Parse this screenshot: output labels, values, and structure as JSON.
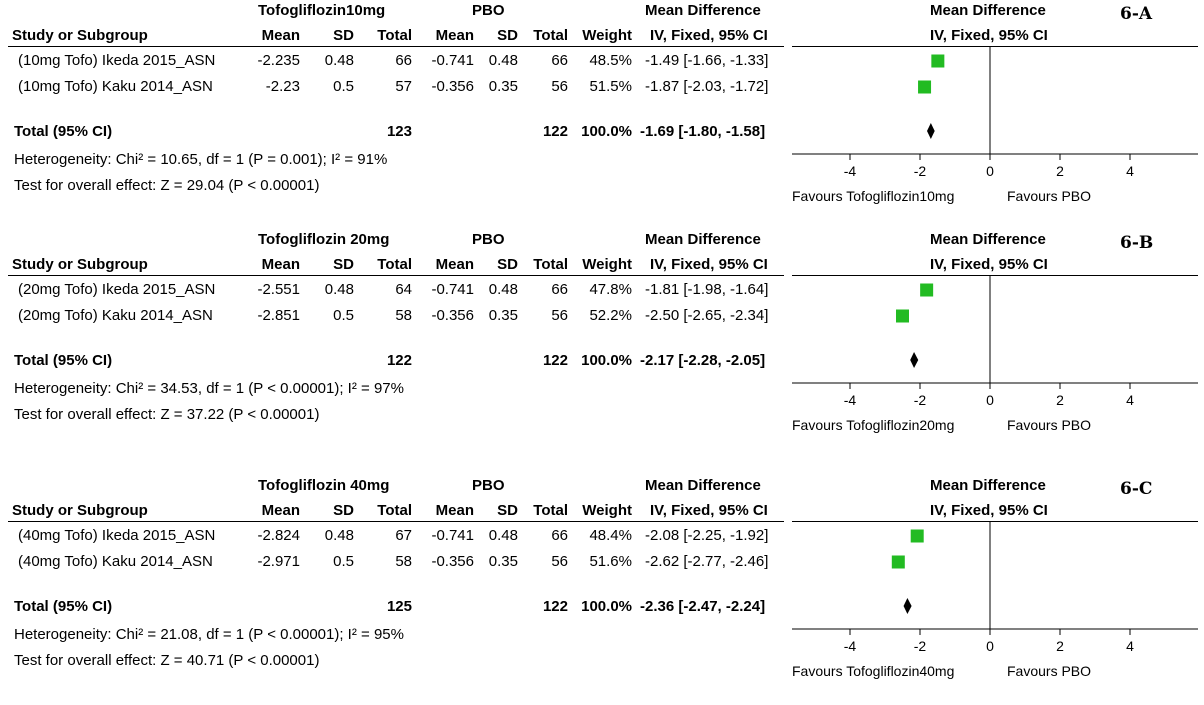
{
  "chart_data": [
    {
      "type": "forest",
      "panel_label": "6-A",
      "group1": "Tofogliflozin10mg",
      "group2": "PBO",
      "effect_header": "Mean Difference",
      "effect_sub": "IV, Fixed, 95% CI",
      "columns": [
        "Study or Subgroup",
        "Mean",
        "SD",
        "Total",
        "Mean",
        "SD",
        "Total",
        "Weight",
        "IV, Fixed, 95% CI"
      ],
      "studies": [
        {
          "name": "(10mg Tofo) Ikeda 2015_ASN",
          "mean1": "-2.235",
          "sd1": "0.48",
          "total1": "66",
          "mean2": "-0.741",
          "sd2": "0.48",
          "total2": "66",
          "weight": "48.5%",
          "ci_text": "-1.49 [-1.66, -1.33]",
          "est": -1.49,
          "lo": -1.66,
          "hi": -1.33
        },
        {
          "name": "(10mg Tofo) Kaku 2014_ASN",
          "mean1": "-2.23",
          "sd1": "0.5",
          "total1": "57",
          "mean2": "-0.356",
          "sd2": "0.35",
          "total2": "56",
          "weight": "51.5%",
          "ci_text": "-1.87 [-2.03, -1.72]",
          "est": -1.87,
          "lo": -2.03,
          "hi": -1.72
        }
      ],
      "total": {
        "label": "Total (95% CI)",
        "total1": "123",
        "total2": "122",
        "weight": "100.0%",
        "ci_text": "-1.69 [-1.80, -1.58]",
        "est": -1.69,
        "lo": -1.8,
        "hi": -1.58
      },
      "heterogeneity": "Heterogeneity: Chi² = 10.65, df = 1 (P = 0.001); I² = 91%",
      "overall": "Test for overall effect: Z = 29.04 (P < 0.00001)",
      "x_ticks": [
        "-4",
        "-2",
        "0",
        "2",
        "4"
      ],
      "xlim": [
        -5.5,
        5.5
      ],
      "favours_left": "Favours Tofogliflozin10mg",
      "favours_right": "Favours PBO"
    },
    {
      "type": "forest",
      "panel_label": "6-B",
      "group1": "Tofogliflozin 20mg",
      "group2": "PBO",
      "effect_header": "Mean Difference",
      "effect_sub": "IV, Fixed, 95% CI",
      "columns": [
        "Study or Subgroup",
        "Mean",
        "SD",
        "Total",
        "Mean",
        "SD",
        "Total",
        "Weight",
        "IV, Fixed, 95% CI"
      ],
      "studies": [
        {
          "name": "(20mg Tofo) Ikeda 2015_ASN",
          "mean1": "-2.551",
          "sd1": "0.48",
          "total1": "64",
          "mean2": "-0.741",
          "sd2": "0.48",
          "total2": "66",
          "weight": "47.8%",
          "ci_text": "-1.81 [-1.98, -1.64]",
          "est": -1.81,
          "lo": -1.98,
          "hi": -1.64
        },
        {
          "name": "(20mg Tofo) Kaku 2014_ASN",
          "mean1": "-2.851",
          "sd1": "0.5",
          "total1": "58",
          "mean2": "-0.356",
          "sd2": "0.35",
          "total2": "56",
          "weight": "52.2%",
          "ci_text": "-2.50 [-2.65, -2.34]",
          "est": -2.5,
          "lo": -2.65,
          "hi": -2.34
        }
      ],
      "total": {
        "label": "Total (95% CI)",
        "total1": "122",
        "total2": "122",
        "weight": "100.0%",
        "ci_text": "-2.17 [-2.28, -2.05]",
        "est": -2.17,
        "lo": -2.28,
        "hi": -2.05
      },
      "heterogeneity": "Heterogeneity: Chi² = 34.53, df = 1 (P < 0.00001); I² = 97%",
      "overall": "Test for overall effect: Z = 37.22 (P < 0.00001)",
      "x_ticks": [
        "-4",
        "-2",
        "0",
        "2",
        "4"
      ],
      "xlim": [
        -5.5,
        5.5
      ],
      "favours_left": "Favours Tofogliflozin20mg",
      "favours_right": "Favours PBO"
    },
    {
      "type": "forest",
      "panel_label": "6-C",
      "group1": "Tofogliflozin 40mg",
      "group2": "PBO",
      "effect_header": "Mean Difference",
      "effect_sub": "IV, Fixed, 95% CI",
      "columns": [
        "Study or Subgroup",
        "Mean",
        "SD",
        "Total",
        "Mean",
        "SD",
        "Total",
        "Weight",
        "IV, Fixed, 95% CI"
      ],
      "studies": [
        {
          "name": "(40mg Tofo) Ikeda 2015_ASN",
          "mean1": "-2.824",
          "sd1": "0.48",
          "total1": "67",
          "mean2": "-0.741",
          "sd2": "0.48",
          "total2": "66",
          "weight": "48.4%",
          "ci_text": "-2.08 [-2.25, -1.92]",
          "est": -2.08,
          "lo": -2.25,
          "hi": -1.92
        },
        {
          "name": "(40mg Tofo) Kaku 2014_ASN",
          "mean1": "-2.971",
          "sd1": "0.5",
          "total1": "58",
          "mean2": "-0.356",
          "sd2": "0.35",
          "total2": "56",
          "weight": "51.6%",
          "ci_text": "-2.62 [-2.77, -2.46]",
          "est": -2.62,
          "lo": -2.77,
          "hi": -2.46
        }
      ],
      "total": {
        "label": "Total (95% CI)",
        "total1": "125",
        "total2": "122",
        "weight": "100.0%",
        "ci_text": "-2.36 [-2.47, -2.24]",
        "est": -2.36,
        "lo": -2.47,
        "hi": -2.24
      },
      "heterogeneity": "Heterogeneity: Chi² = 21.08, df = 1 (P < 0.00001); I² = 95%",
      "overall": "Test for overall effect: Z = 40.71 (P < 0.00001)",
      "x_ticks": [
        "-4",
        "-2",
        "0",
        "2",
        "4"
      ],
      "xlim": [
        -5.5,
        5.5
      ],
      "favours_left": "Favours Tofogliflozin40mg",
      "favours_right": "Favours PBO"
    }
  ],
  "colors": {
    "study_marker": "#22bb22",
    "diamond": "#000000"
  }
}
